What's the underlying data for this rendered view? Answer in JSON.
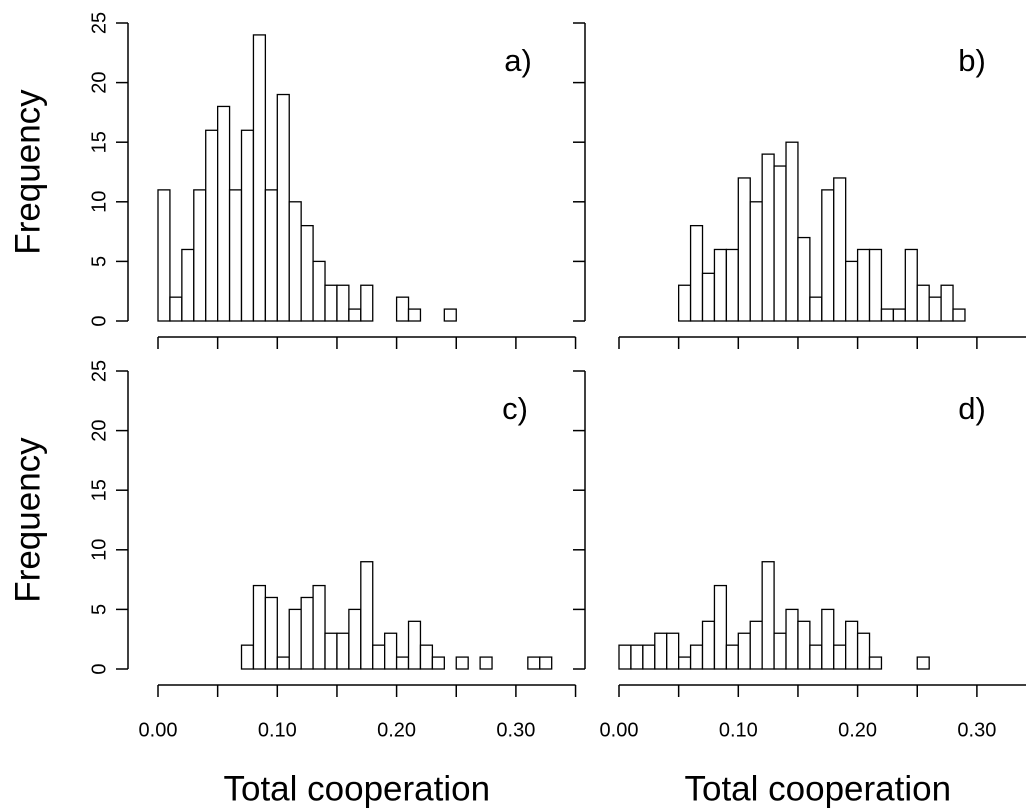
{
  "chart_data": [
    {
      "type": "histogram",
      "annotation": "a)",
      "ylabel": "Frequency",
      "bins": [
        0.0,
        0.01,
        0.02,
        0.03,
        0.04,
        0.05,
        0.06,
        0.07,
        0.08,
        0.09,
        0.1,
        0.11,
        0.12,
        0.13,
        0.14,
        0.15,
        0.16,
        0.17,
        0.18,
        0.19,
        0.2,
        0.21,
        0.22,
        0.23,
        0.24,
        0.25
      ],
      "values": [
        11,
        2,
        6,
        11,
        16,
        18,
        11,
        16,
        24,
        11,
        19,
        10,
        8,
        5,
        3,
        3,
        1,
        3,
        0,
        0,
        2,
        1,
        0,
        0,
        1
      ],
      "xlim": [
        0,
        0.35
      ],
      "xticks": [
        0,
        0.05,
        0.1,
        0.15,
        0.2,
        0.25,
        0.3,
        0.35
      ],
      "show_xtick_labels": false,
      "ylim": [
        0,
        25
      ],
      "yticks": [
        0,
        5,
        10,
        15,
        20,
        25
      ],
      "show_ytick_labels": true,
      "color": "#ffffff"
    },
    {
      "type": "histogram",
      "annotation": "b)",
      "bins": [
        0.05,
        0.06,
        0.07,
        0.08,
        0.09,
        0.1,
        0.11,
        0.12,
        0.13,
        0.14,
        0.15,
        0.16,
        0.17,
        0.18,
        0.19,
        0.2,
        0.21,
        0.22,
        0.23,
        0.24,
        0.25,
        0.26,
        0.27,
        0.28,
        0.29
      ],
      "values": [
        3,
        8,
        4,
        6,
        6,
        12,
        10,
        14,
        13,
        15,
        7,
        2,
        11,
        12,
        5,
        6,
        6,
        1,
        1,
        6,
        3,
        2,
        3,
        1
      ],
      "xlim": [
        0,
        0.35
      ],
      "xticks": [
        0,
        0.05,
        0.1,
        0.15,
        0.2,
        0.25,
        0.3,
        0.35
      ],
      "show_xtick_labels": false,
      "ylim": [
        0,
        25
      ],
      "yticks": [
        0,
        5,
        10,
        15,
        20,
        25
      ],
      "show_ytick_labels": false,
      "color": "#ffffff"
    },
    {
      "type": "histogram",
      "annotation": "c)",
      "ylabel": "Frequency",
      "xlabel": "Total cooperation",
      "bins": [
        0.07,
        0.08,
        0.09,
        0.1,
        0.11,
        0.12,
        0.13,
        0.14,
        0.15,
        0.16,
        0.17,
        0.18,
        0.19,
        0.2,
        0.21,
        0.22,
        0.23,
        0.24,
        0.25,
        0.26,
        0.27,
        0.28,
        0.29,
        0.3,
        0.31,
        0.32,
        0.33
      ],
      "values": [
        2,
        7,
        6,
        1,
        5,
        6,
        7,
        3,
        3,
        5,
        9,
        2,
        3,
        1,
        4,
        2,
        1,
        0,
        1,
        0,
        1,
        0,
        0,
        0,
        1,
        1
      ],
      "xlim": [
        0,
        0.35
      ],
      "xticks": [
        {
          "value": 0,
          "label": "0.00"
        },
        {
          "value": 0.1,
          "label": "0.10"
        },
        {
          "value": 0.2,
          "label": "0.20"
        },
        {
          "value": 0.3,
          "label": "0.30"
        }
      ],
      "minor_xticks": [
        0.05,
        0.15,
        0.25,
        0.35
      ],
      "show_xtick_labels": true,
      "ylim": [
        0,
        25
      ],
      "yticks": [
        0,
        5,
        10,
        15,
        20,
        25
      ],
      "show_ytick_labels": true,
      "color": "#ffffff"
    },
    {
      "type": "histogram",
      "annotation": "d)",
      "xlabel": "Total cooperation",
      "bins": [
        0.0,
        0.01,
        0.02,
        0.03,
        0.04,
        0.05,
        0.06,
        0.07,
        0.08,
        0.09,
        0.1,
        0.11,
        0.12,
        0.13,
        0.14,
        0.15,
        0.16,
        0.17,
        0.18,
        0.19,
        0.2,
        0.21,
        0.22,
        0.23,
        0.24,
        0.25,
        0.26
      ],
      "values": [
        2,
        2,
        2,
        3,
        3,
        1,
        2,
        4,
        7,
        2,
        3,
        4,
        9,
        3,
        5,
        4,
        2,
        5,
        2,
        4,
        3,
        1,
        0,
        0,
        0,
        1
      ],
      "xlim": [
        0,
        0.35
      ],
      "xticks": [
        {
          "value": 0,
          "label": "0.00"
        },
        {
          "value": 0.1,
          "label": "0.10"
        },
        {
          "value": 0.2,
          "label": "0.20"
        },
        {
          "value": 0.3,
          "label": "0.30"
        }
      ],
      "minor_xticks": [
        0.05,
        0.15,
        0.25,
        0.35
      ],
      "show_xtick_labels": true,
      "ylim": [
        0,
        25
      ],
      "yticks": [
        0,
        5,
        10,
        15,
        20,
        25
      ],
      "show_ytick_labels": false,
      "color": "#ffffff"
    }
  ]
}
